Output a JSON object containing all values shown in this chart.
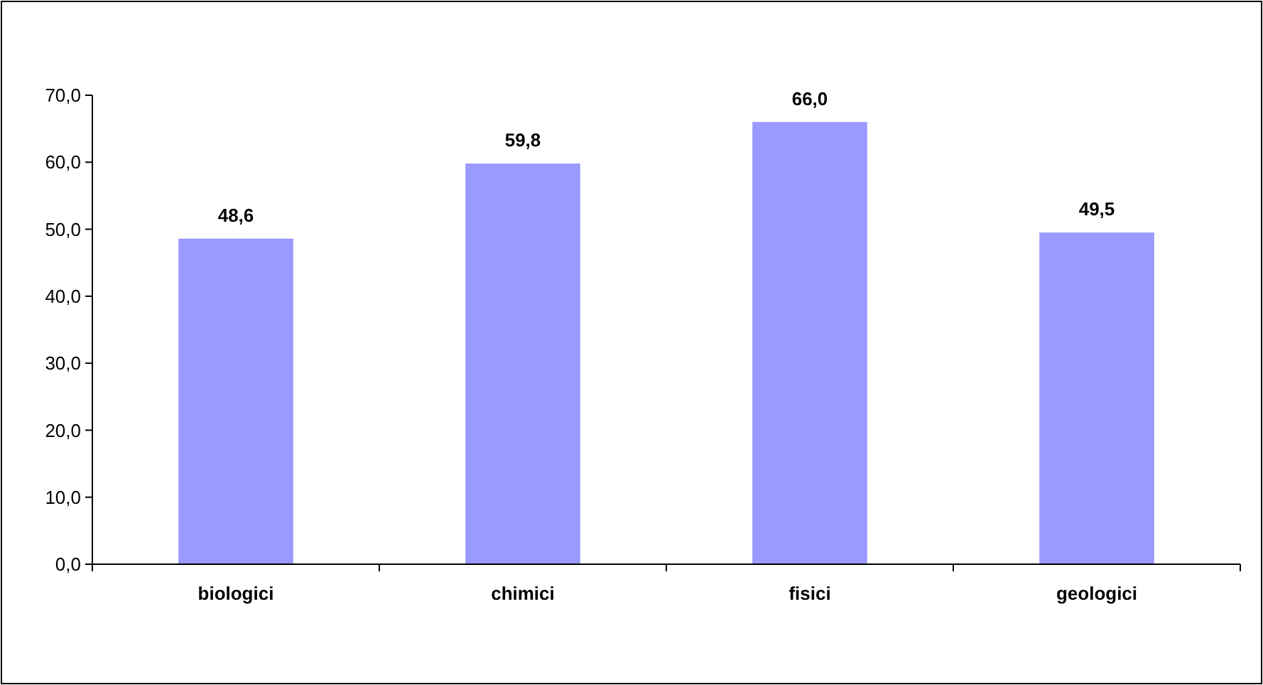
{
  "chart_data": {
    "type": "bar",
    "categories": [
      "biologici",
      "chimici",
      "fisici",
      "geologici"
    ],
    "values": [
      48.6,
      59.8,
      66.0,
      49.5
    ],
    "color": "#9999ff",
    "value_labels": [
      "48,6",
      "59,8",
      "66,0",
      "49,5"
    ],
    "ylim": [
      0,
      70
    ],
    "yticks": [
      {
        "value": 0,
        "label": "0,0"
      },
      {
        "value": 10,
        "label": "10,0"
      },
      {
        "value": 20,
        "label": "20,0"
      },
      {
        "value": 30,
        "label": "30,0"
      },
      {
        "value": 40,
        "label": "40,0"
      },
      {
        "value": 50,
        "label": "50,0"
      },
      {
        "value": 60,
        "label": "60,0"
      },
      {
        "value": 70,
        "label": "70,0"
      }
    ],
    "grid": false
  }
}
